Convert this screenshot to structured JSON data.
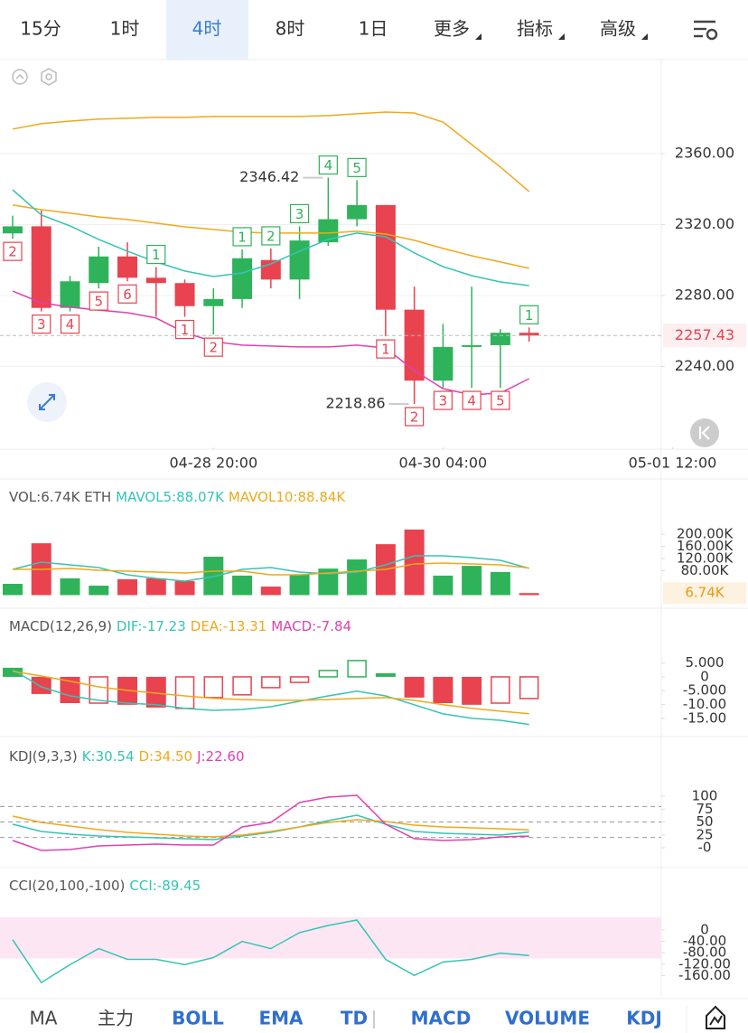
{
  "tabs": {
    "items": [
      "15分",
      "1时",
      "4时",
      "8时",
      "1日",
      "更多",
      "指标",
      "高级"
    ],
    "active": 2
  },
  "bottom_tabs": {
    "items": [
      "MA",
      "主力",
      "BOLL",
      "EMA",
      "TD",
      "MACD",
      "VOLUME",
      "KDJ"
    ],
    "active": [
      2,
      3,
      4,
      5,
      6,
      7
    ]
  },
  "chart_data": [
    {
      "type": "candlestick",
      "open": [
        2315,
        2319,
        2273,
        2287,
        2302,
        2290,
        2287,
        2274,
        2278,
        2300,
        2289,
        2310,
        2323,
        2331,
        2272,
        2232,
        2251,
        2252,
        2259
      ],
      "high": [
        2325,
        2328,
        2291,
        2307.5,
        2310,
        2296,
        2289,
        2284,
        2306,
        2306.5,
        2319,
        2346.42,
        2345,
        2331,
        2285,
        2264,
        2285,
        2261,
        2262
      ],
      "low": [
        2312,
        2271,
        2271,
        2284,
        2288,
        2268,
        2268,
        2258,
        2273,
        2284,
        2278,
        2308,
        2319,
        2257,
        2218.86,
        2228,
        2228,
        2228,
        2254
      ],
      "close": [
        2319,
        2273,
        2288,
        2302,
        2290,
        2287,
        2274,
        2278,
        2301,
        2289,
        2311,
        2323,
        2331,
        2272,
        2232,
        2251,
        2252,
        2259,
        2257.43
      ],
      "up_color": "#2fb35a",
      "down_color": "#e8434f",
      "lines": [
        {
          "color": "#f0a81c",
          "values": [
            2373.8,
            2376.8,
            2378.3,
            2379.4,
            2379.9,
            2380.4,
            2380.4,
            2380.9,
            2380.9,
            2380.9,
            2380.9,
            2381.4,
            2382.4,
            2383.4,
            2382.9,
            2377.8,
            2365.1,
            2352.4,
            2338.6
          ]
        },
        {
          "color": "#f0a81c",
          "values": [
            2331,
            2328.4,
            2326.4,
            2324.3,
            2322.8,
            2320.8,
            2318.7,
            2317.2,
            2315.7,
            2315.2,
            2315.2,
            2315.2,
            2316.2,
            2314.6,
            2311.1,
            2306.5,
            2302.4,
            2298.9,
            2295.3
          ]
        },
        {
          "color": "#35c4b5",
          "values": [
            2339.6,
            2325.4,
            2319.2,
            2311.6,
            2305,
            2298.9,
            2293.8,
            2290.7,
            2292.7,
            2297.8,
            2305,
            2311.6,
            2315.2,
            2313.1,
            2304,
            2296.3,
            2291.2,
            2287.6,
            2285.6
          ]
        },
        {
          "color": "#e040b0",
          "values": [
            2282.5,
            2275.9,
            2273.4,
            2271.8,
            2270.3,
            2267.3,
            2259.1,
            2254,
            2252,
            2251.5,
            2251,
            2251,
            2252,
            2250.4,
            2237.7,
            2227.5,
            2224,
            2225,
            2233.1
          ]
        }
      ],
      "td_counts": [
        "2",
        "3",
        "4",
        "5",
        "6",
        "1",
        "1",
        "2",
        "1",
        "2",
        "3",
        "4",
        "5",
        "1",
        "2",
        "3",
        "4",
        "5",
        "1"
      ],
      "td_sides": [
        "below",
        "below",
        "below",
        "below",
        "below",
        "above",
        "below",
        "below",
        "above",
        "above",
        "above",
        "above",
        "above",
        "below",
        "below",
        "below",
        "below",
        "below",
        "above"
      ],
      "ylim": [
        2194.4,
        2410.9
      ],
      "yticks": [
        {
          "value": 2360,
          "label": "2360.00"
        },
        {
          "value": 2320,
          "label": "2320.00"
        },
        {
          "value": 2280,
          "label": "2280.00"
        },
        {
          "value": 2240,
          "label": "2240.00"
        }
      ],
      "xlim": [
        -0.44,
        25.63
      ],
      "xticks": [
        {
          "value": 7,
          "label": "04-28 20:00"
        },
        {
          "value": 15,
          "label": "04-30 04:00"
        },
        {
          "value": 23,
          "label": "05-01 12:00"
        }
      ],
      "grid": true
    },
    {
      "type": "bar",
      "legend": [
        {
          "text": "VOL:6.74K ETH",
          "color": "#555"
        },
        {
          "text": "MAVOL5:88.07K",
          "color": "#35c4b5"
        },
        {
          "text": "MAVOL10:88.84K",
          "color": "#f0a81c"
        }
      ],
      "values": [
        37,
        170,
        55,
        31,
        52,
        55,
        46,
        126,
        64,
        28,
        67,
        87,
        117,
        167,
        215,
        64,
        96,
        76,
        6.74
      ],
      "last_label": "6.74K",
      "lines": [
        {
          "color": "#35c4b5",
          "values": [
            84.4,
            108.1,
            99.3,
            90.4,
            66.7,
            54.8,
            45.9,
            60.7,
            84.4,
            90.4,
            75.6,
            69.6,
            75.6,
            99.3,
            128.9,
            128.9,
            123,
            114.1,
            88.07
          ]
        },
        {
          "color": "#f0a81c",
          "values": [
            84.4,
            84.4,
            87.4,
            81.5,
            78.5,
            75.6,
            72.6,
            78.5,
            78.5,
            66.7,
            66.7,
            72.6,
            78.5,
            84.4,
            102.2,
            105.2,
            102.2,
            99.3,
            88.84
          ]
        }
      ],
      "ylim": [
        0,
        232.6
      ],
      "yticks": [
        {
          "value": 200,
          "label": "200.00K"
        },
        {
          "value": 160,
          "label": "160.00K"
        },
        {
          "value": 120,
          "label": "120.00K"
        },
        {
          "value": 80,
          "label": "80.00K"
        }
      ]
    },
    {
      "type": "macd",
      "legend": [
        {
          "text": "MACD(12,26,9)",
          "color": "#555"
        },
        {
          "text": "DIF:-17.23",
          "color": "#35c4b5"
        },
        {
          "text": "DEA:-13.31",
          "color": "#f0a81c"
        },
        {
          "text": "MACD:-7.84",
          "color": "#e040b0"
        }
      ],
      "values": [
        3.3,
        -6.2,
        -9.5,
        -9.5,
        -10.1,
        -11.1,
        -11.4,
        -7.5,
        -6.5,
        -3.9,
        -2,
        2.3,
        5.9,
        1.3,
        -7.5,
        -9.5,
        -10.1,
        -9.5,
        -7.84
      ],
      "hollow": [
        false,
        false,
        false,
        true,
        false,
        false,
        true,
        true,
        true,
        true,
        true,
        true,
        true,
        false,
        false,
        false,
        false,
        true,
        true
      ],
      "lines": [
        {
          "color": "#35c4b5",
          "values": [
            2.6,
            -3.6,
            -6.9,
            -8.5,
            -9.5,
            -10.1,
            -11.4,
            -12.1,
            -11.8,
            -10.8,
            -8.8,
            -6.9,
            -5.2,
            -6.9,
            -10.1,
            -13.4,
            -15,
            -15.7,
            -17.23
          ]
        },
        {
          "color": "#f0a81c",
          "values": [
            2,
            0.3,
            -1.6,
            -3.6,
            -4.9,
            -5.9,
            -6.9,
            -7.8,
            -8.2,
            -8.5,
            -8.5,
            -8.2,
            -7.8,
            -7.5,
            -8.5,
            -10.1,
            -11.4,
            -12.4,
            -13.31
          ]
        }
      ],
      "ylim": [
        -18,
        7.5
      ],
      "yticks": [
        {
          "value": 5,
          "label": "5.000"
        },
        0,
        {
          "value": -5,
          "label": "-5.000"
        },
        {
          "value": -10,
          "label": "-10.00"
        },
        {
          "value": -15,
          "label": "-15.00"
        }
      ]
    },
    {
      "type": "line",
      "legend": [
        {
          "text": "KDJ(9,3,3)",
          "color": "#555"
        },
        {
          "text": "K:30.54",
          "color": "#35c4b5"
        },
        {
          "text": "D:34.50",
          "color": "#f0a81c"
        },
        {
          "text": "J:22.60",
          "color": "#e040b0"
        }
      ],
      "levels": [
        80,
        50,
        20
      ],
      "lines": [
        {
          "color": "#35c4b5",
          "values": [
            45.6,
            31.6,
            26.3,
            22.8,
            21.1,
            19.3,
            17.5,
            15.8,
            22.8,
            29.8,
            40.4,
            52.6,
            63.2,
            45.6,
            31.6,
            28.1,
            26.3,
            24.6,
            30.54
          ]
        },
        {
          "color": "#f0a81c",
          "values": [
            61.4,
            49.1,
            42.1,
            35.1,
            29.8,
            26.3,
            22.8,
            21.1,
            24.6,
            31.6,
            40.4,
            49.1,
            54.4,
            50.9,
            43.9,
            40.4,
            38.6,
            36.8,
            34.5
          ]
        },
        {
          "color": "#e040b0",
          "values": [
            14,
            -5.3,
            -3.5,
            3.5,
            5.3,
            7,
            5.3,
            5.3,
            40.4,
            49.1,
            87.7,
            98.2,
            101.8,
            45.6,
            17.5,
            14,
            15.8,
            21.1,
            22.6
          ]
        }
      ],
      "ylim": [
        -29.8,
        119.3
      ],
      "yticks": [
        100,
        75,
        50,
        25,
        {
          "value": 0,
          "label": "-0"
        }
      ]
    },
    {
      "type": "line",
      "legend": [
        {
          "text": "CCI(20,100,-100)",
          "color": "#555"
        },
        {
          "text": "CCI:-89.45",
          "color": "#35c4b5"
        }
      ],
      "band": [
        -100,
        100
      ],
      "band_color": "#fce6f4",
      "lines": [
        {
          "color": "#35c4b5",
          "values": [
            -34.4,
            -184.4,
            -121.9,
            -65.6,
            -103.1,
            -103.1,
            -121.9,
            -96.9,
            -40.6,
            -65.6,
            -9.4,
            15.6,
            34.4,
            -103.1,
            -159.4,
            -112.5,
            -103.1,
            -81.3,
            -89.45
          ]
        }
      ],
      "ylim": [
        -225,
        44
      ],
      "yticks": [
        0,
        {
          "value": -40,
          "label": "-40.00"
        },
        {
          "value": -80,
          "label": "-80.00"
        },
        {
          "value": -120,
          "label": "-120.00"
        },
        {
          "value": -160,
          "label": "-160.00"
        }
      ]
    }
  ]
}
